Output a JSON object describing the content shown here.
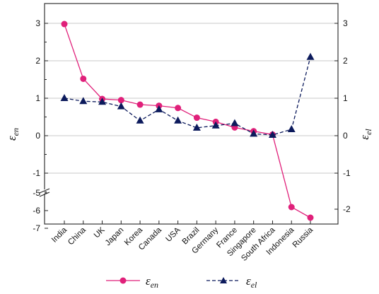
{
  "chart_data": {
    "type": "line",
    "categories": [
      "India",
      "China",
      "UK",
      "Japan",
      "Korea",
      "Canada",
      "USA",
      "Brazil",
      "Germany",
      "France",
      "Singapore",
      "South Africa",
      "Indonesia",
      "Russia"
    ],
    "series": [
      {
        "name": "ε_en",
        "axis": "left",
        "color": "#e0207a",
        "marker": "circle",
        "line_style": "solid",
        "values": [
          2.98,
          1.52,
          0.98,
          0.95,
          0.83,
          0.8,
          0.74,
          0.48,
          0.37,
          0.22,
          0.12,
          0.03,
          -5.8,
          -6.4
        ]
      },
      {
        "name": "ε_el",
        "axis": "right",
        "color": "#0c1a5c",
        "marker": "triangle",
        "line_style": "dashed",
        "values": [
          1.0,
          0.92,
          0.9,
          0.78,
          0.4,
          0.7,
          0.4,
          0.21,
          0.27,
          0.33,
          0.05,
          0.02,
          0.17,
          2.1
        ]
      }
    ],
    "y_left": {
      "label_main": "ε",
      "label_sub": "en",
      "ticks": [
        "3",
        "2",
        "1",
        "0",
        "-1",
        "-5",
        "-6",
        "-7"
      ],
      "tick_values": [
        3,
        2,
        1,
        0,
        -1,
        -5,
        -6,
        -7
      ],
      "break_between": [
        -2,
        -5
      ]
    },
    "y_right": {
      "label_main": "ε",
      "label_sub": "el",
      "ticks": [
        "3",
        "2",
        "1",
        "0",
        "-1",
        "-2"
      ],
      "tick_values": [
        3,
        2,
        1,
        0,
        -1,
        -2
      ],
      "ylim": [
        -2.4,
        3.5
      ]
    },
    "grid": true,
    "legend": {
      "placement": "bottom",
      "items": [
        {
          "main": "ε",
          "sub": "en"
        },
        {
          "main": "ε",
          "sub": "el"
        }
      ]
    }
  }
}
